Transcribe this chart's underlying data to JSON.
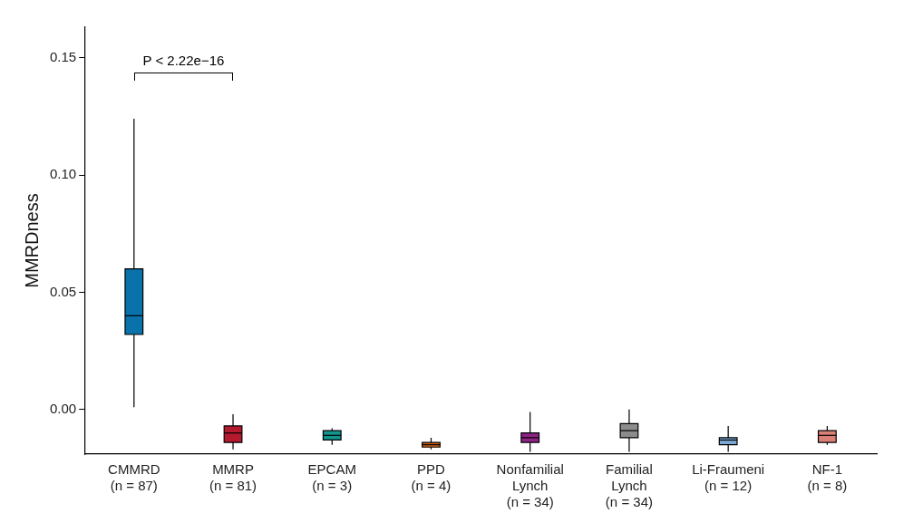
{
  "chart_data": {
    "type": "box",
    "ylabel": "MMRDness",
    "categories": [
      "CMMRD\n(n = 87)",
      "MMRP\n(n = 81)",
      "EPCAM\n(n = 3)",
      "PPD\n(n = 4)",
      "Nonfamilial\nLynch\n(n = 34)",
      "Familial\nLynch\n(n = 34)",
      "Li-Fraumeni\n(n = 12)",
      "NF-1\n(n = 8)"
    ],
    "colors": [
      "#0a72aa",
      "#b5192e",
      "#11958d",
      "#d0601a",
      "#8e2386",
      "#8c8c8c",
      "#7aa8d2",
      "#db8077"
    ],
    "boxes": [
      {
        "low": 0.001,
        "q1": 0.032,
        "median": 0.04,
        "q3": 0.06,
        "high": 0.124
      },
      {
        "low": -0.017,
        "q1": -0.014,
        "median": -0.01,
        "q3": -0.007,
        "high": -0.002
      },
      {
        "low": -0.015,
        "q1": -0.013,
        "median": -0.011,
        "q3": -0.009,
        "high": -0.008
      },
      {
        "low": -0.017,
        "q1": -0.016,
        "median": -0.015,
        "q3": -0.014,
        "high": -0.012
      },
      {
        "low": -0.018,
        "q1": -0.014,
        "median": -0.012,
        "q3": -0.01,
        "high": -0.001
      },
      {
        "low": -0.018,
        "q1": -0.012,
        "median": -0.009,
        "q3": -0.006,
        "high": 0.0
      },
      {
        "low": -0.018,
        "q1": -0.015,
        "median": -0.013,
        "q3": -0.012,
        "high": -0.007
      },
      {
        "low": -0.015,
        "q1": -0.014,
        "median": -0.011,
        "q3": -0.009,
        "high": -0.007
      }
    ],
    "ylim": [
      -0.019,
      0.163
    ],
    "yticks": [
      {
        "value": 0,
        "label": "0.00"
      },
      {
        "value": 0.05,
        "label": "0.05"
      },
      {
        "value": 0.1,
        "label": "0.10"
      },
      {
        "value": 0.15,
        "label": "0.15"
      }
    ],
    "annotations": [
      "P < 2.22e−16"
    ],
    "grid": false,
    "legend": false
  }
}
